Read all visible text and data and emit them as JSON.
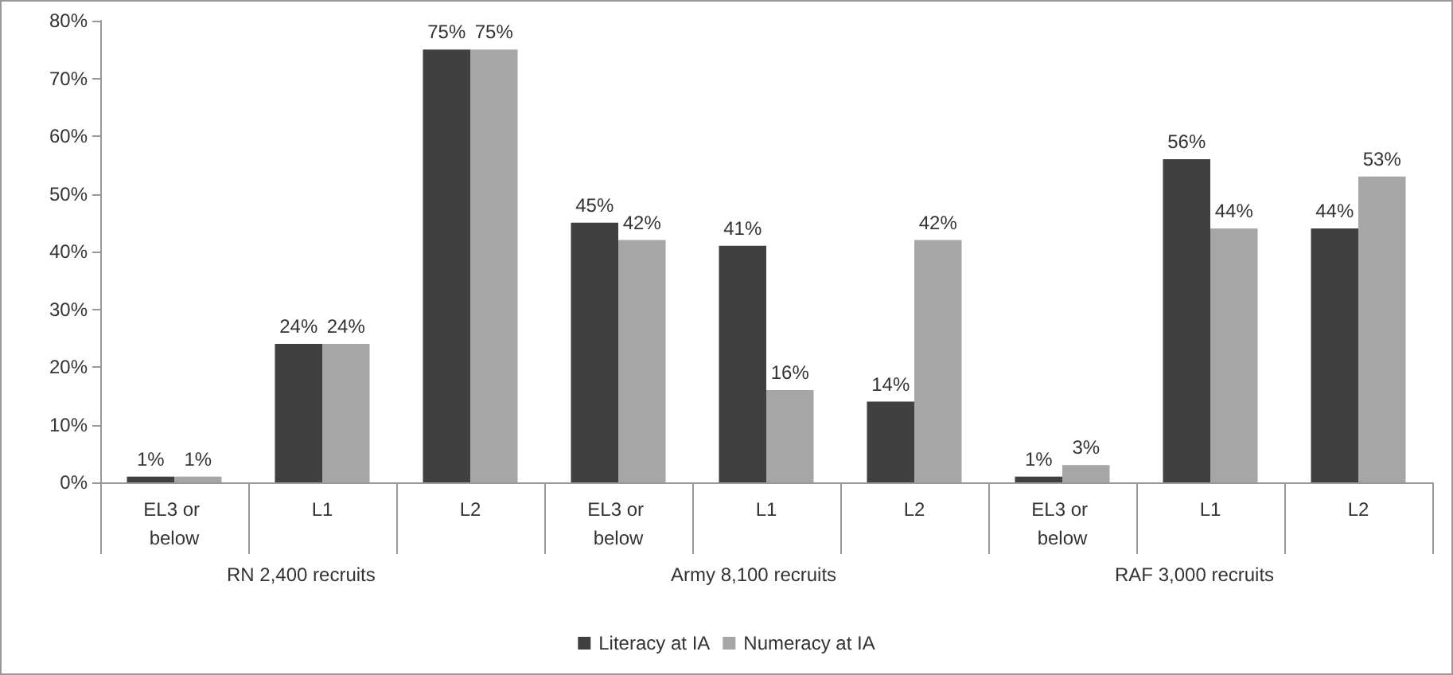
{
  "chart_data": {
    "type": "bar",
    "categories": [
      "EL3 or below",
      "L1",
      "L2",
      "EL3 or below",
      "L1",
      "L2",
      "EL3 or below",
      "L1",
      "L2"
    ],
    "series": [
      {
        "name": "Literacy at IA",
        "color": "#404040",
        "values": [
          1,
          24,
          75,
          45,
          41,
          14,
          1,
          56,
          44
        ],
        "value_labels": [
          "1%",
          "24%",
          "75%",
          "45%",
          "41%",
          "14%",
          "1%",
          "56%",
          "44%"
        ]
      },
      {
        "name": "Numeracy at IA",
        "color": "#a6a6a6",
        "values": [
          1,
          24,
          75,
          42,
          16,
          42,
          3,
          44,
          53
        ],
        "value_labels": [
          "1%",
          "24%",
          "75%",
          "42%",
          "16%",
          "42%",
          "3%",
          "44%",
          "53%"
        ]
      }
    ],
    "ylim": [
      0,
      80
    ],
    "yticks": [
      {
        "value": 0,
        "label": "0%"
      },
      {
        "value": 10,
        "label": "10%"
      },
      {
        "value": 20,
        "label": "20%"
      },
      {
        "value": 30,
        "label": "30%"
      },
      {
        "value": 40,
        "label": "40%"
      },
      {
        "value": 50,
        "label": "50%"
      },
      {
        "value": 60,
        "label": "60%"
      },
      {
        "value": 70,
        "label": "70%"
      },
      {
        "value": 80,
        "label": "80%"
      }
    ],
    "grid": false,
    "legend": "bottom",
    "annotations": [
      "RN 2,400 recruits",
      "Army 8,100 recruits",
      "RAF 3,000 recruits"
    ]
  }
}
